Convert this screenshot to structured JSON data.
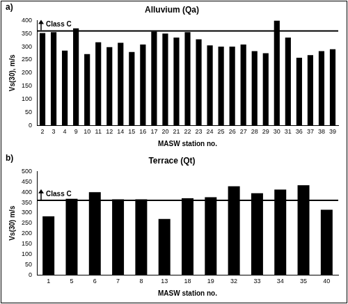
{
  "chart_data": [
    {
      "type": "bar",
      "panel_label": "a)",
      "title": "Alluvium (Qa)",
      "x_label": "MASW station no.",
      "y_label": "Vs(30), m/s",
      "categories": [
        "2",
        "3",
        "4",
        "9",
        "10",
        "11",
        "12",
        "14",
        "15",
        "16",
        "17",
        "20",
        "21",
        "22",
        "23",
        "24",
        "25",
        "26",
        "27",
        "28",
        "29",
        "30",
        "31",
        "36",
        "37",
        "38",
        "39"
      ],
      "values": [
        352,
        355,
        285,
        370,
        272,
        317,
        298,
        315,
        280,
        308,
        358,
        350,
        335,
        355,
        328,
        305,
        300,
        300,
        308,
        283,
        275,
        400,
        335,
        258,
        268,
        283,
        290
      ],
      "color": "#000000",
      "ylim": [
        0,
        400
      ],
      "yticks": [
        0,
        50,
        100,
        150,
        200,
        250,
        300,
        350,
        400
      ],
      "grid": false,
      "reference_line": {
        "value": 360,
        "label": "Class C"
      }
    },
    {
      "type": "bar",
      "panel_label": "b)",
      "title": "Terrace (Qt)",
      "x_label": "MASW station no.",
      "y_label": "Vs(30) m/s",
      "categories": [
        "1",
        "5",
        "6",
        "7",
        "8",
        "13",
        "18",
        "19",
        "32",
        "33",
        "34",
        "35",
        "40"
      ],
      "values": [
        283,
        368,
        400,
        365,
        365,
        270,
        370,
        375,
        428,
        395,
        412,
        433,
        315
      ],
      "color": "#000000",
      "ylim": [
        0,
        500
      ],
      "yticks": [
        0,
        50,
        100,
        150,
        200,
        250,
        300,
        350,
        400,
        450,
        500
      ],
      "grid": false,
      "reference_line": {
        "value": 360,
        "label": "Class C"
      }
    }
  ]
}
